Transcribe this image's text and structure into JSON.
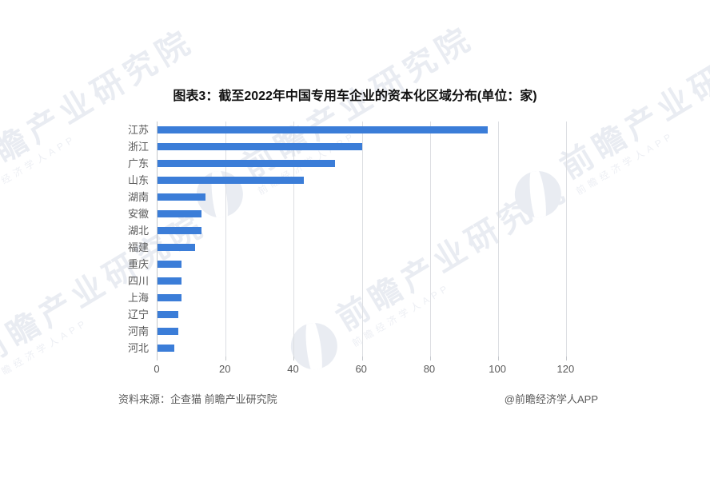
{
  "title": "图表3：截至2022年中国专用车企业的资本化区域分布(单位：家)",
  "chart_data": {
    "type": "bar",
    "orientation": "horizontal",
    "title": "图表3：截至2022年中国专用车企业的资本化区域分布(单位：家)",
    "unit": "家",
    "categories": [
      "江苏",
      "浙江",
      "广东",
      "山东",
      "湖南",
      "安徽",
      "湖北",
      "福建",
      "重庆",
      "四川",
      "上海",
      "辽宁",
      "河南",
      "河北"
    ],
    "values": [
      97,
      60,
      52,
      43,
      14,
      13,
      13,
      11,
      7,
      7,
      7,
      6,
      6,
      5
    ],
    "xlabel": "",
    "ylabel": "",
    "xlim": [
      0,
      130
    ],
    "x_ticks": [
      0,
      20,
      40,
      60,
      80,
      100,
      120
    ],
    "grid": true,
    "legend": false,
    "bar_color": "#3b7dd8"
  },
  "footer": {
    "source": "资料来源：企查猫 前瞻产业研究院",
    "credit": "@前瞻经济学人APP"
  },
  "watermark": {
    "logo": "forward-globe-logo",
    "brand_large": "前瞻产业研究院",
    "brand_small": "前瞻经济学人APP"
  }
}
